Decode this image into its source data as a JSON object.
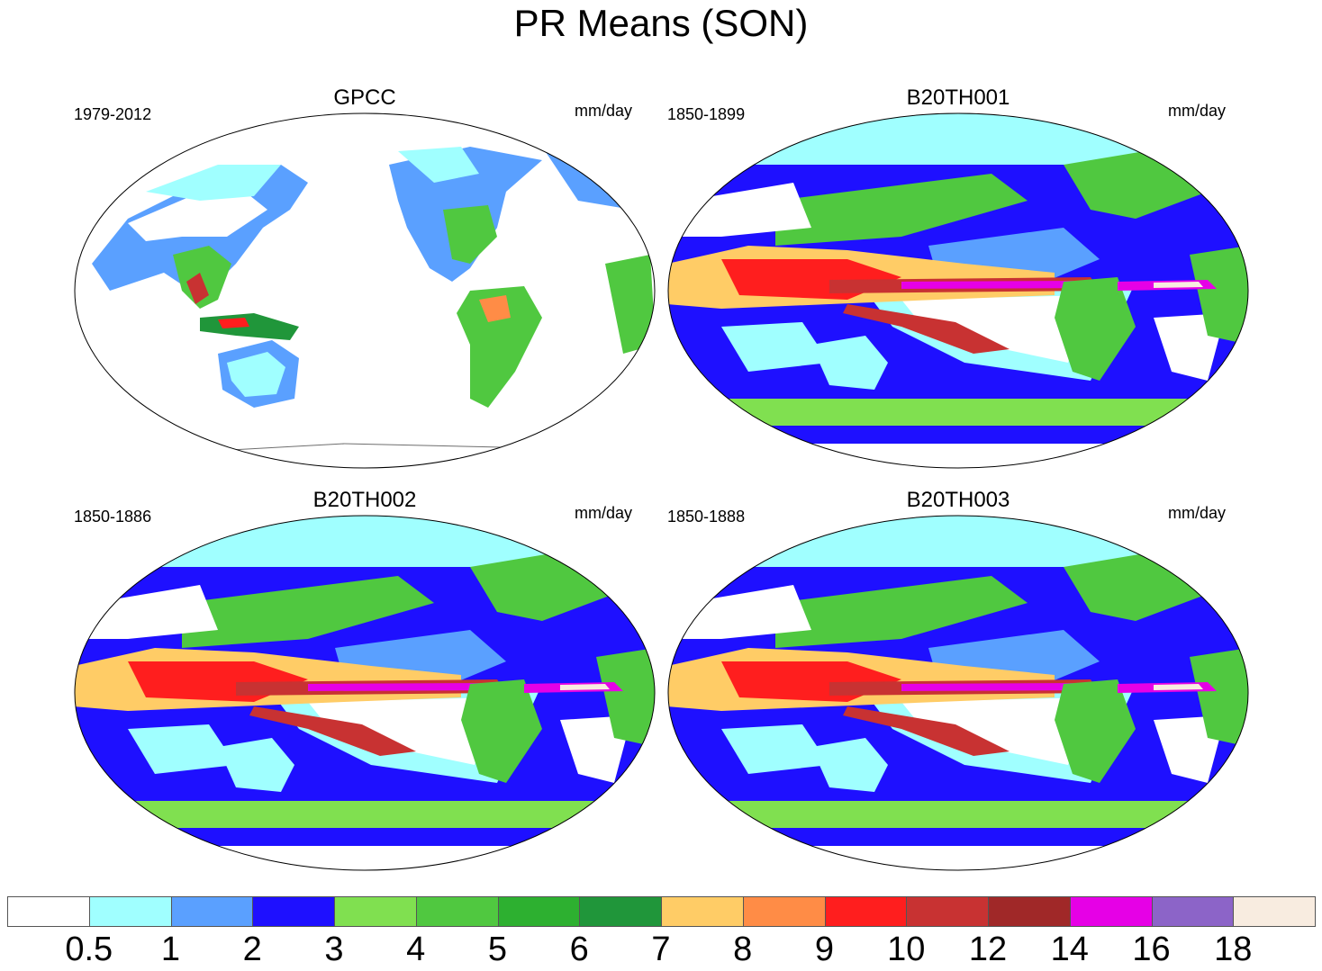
{
  "figure": {
    "title": "PR Means (SON)"
  },
  "panels": [
    {
      "title": "GPCC",
      "period": "1979-2012",
      "units": "mm/day",
      "type": "obs"
    },
    {
      "title": "B20TH001",
      "period": "1850-1899",
      "units": "mm/day",
      "type": "model"
    },
    {
      "title": "B20TH002",
      "period": "1850-1886",
      "units": "mm/day",
      "type": "model"
    },
    {
      "title": "B20TH003",
      "period": "1850-1888",
      "units": "mm/day",
      "type": "model"
    }
  ],
  "colorbar": {
    "levels": [
      "0.5",
      "1",
      "2",
      "3",
      "4",
      "5",
      "6",
      "7",
      "8",
      "9",
      "10",
      "12",
      "14",
      "16",
      "18"
    ],
    "colors": [
      "#ffffff",
      "#a0ffff",
      "#5aa0ff",
      "#1e10ff",
      "#80e050",
      "#50c840",
      "#2db030",
      "#20963a",
      "#ffcc66",
      "#ff8c46",
      "#ff1e1e",
      "#c83232",
      "#a02828",
      "#e600e6",
      "#8c64c8",
      "#f8ece0"
    ]
  },
  "map_colors": {
    "land_outline": "#6e6e6e",
    "border": "#000000"
  }
}
